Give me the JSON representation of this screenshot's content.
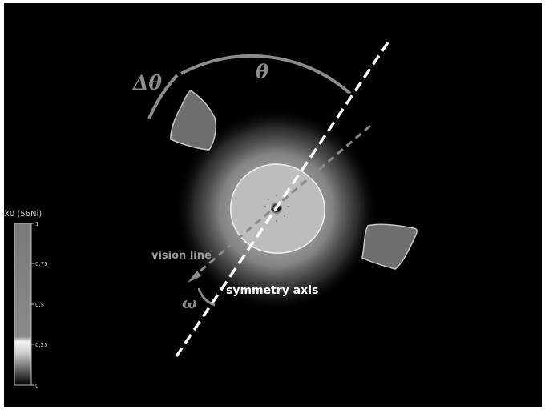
{
  "labels": {
    "delta_theta": "Δθ",
    "theta": "θ",
    "omega": "ω",
    "vision_line": "vision line",
    "symmetry_axis": "symmetry axis"
  },
  "colorbar": {
    "title": "X0 (56Ni)",
    "ticks": [
      "1",
      "0.75",
      "0.5",
      "0.25",
      "0"
    ]
  },
  "colors": {
    "background": "#000000",
    "frame": "#ffffff",
    "arc_and_serif_labels": "#8c8c8c",
    "symmetry_axis": "#ffffff",
    "vision_line": "#8a8a8a",
    "clump_fill": "#6e6e6e",
    "core_fill": "#bdbdbd"
  }
}
